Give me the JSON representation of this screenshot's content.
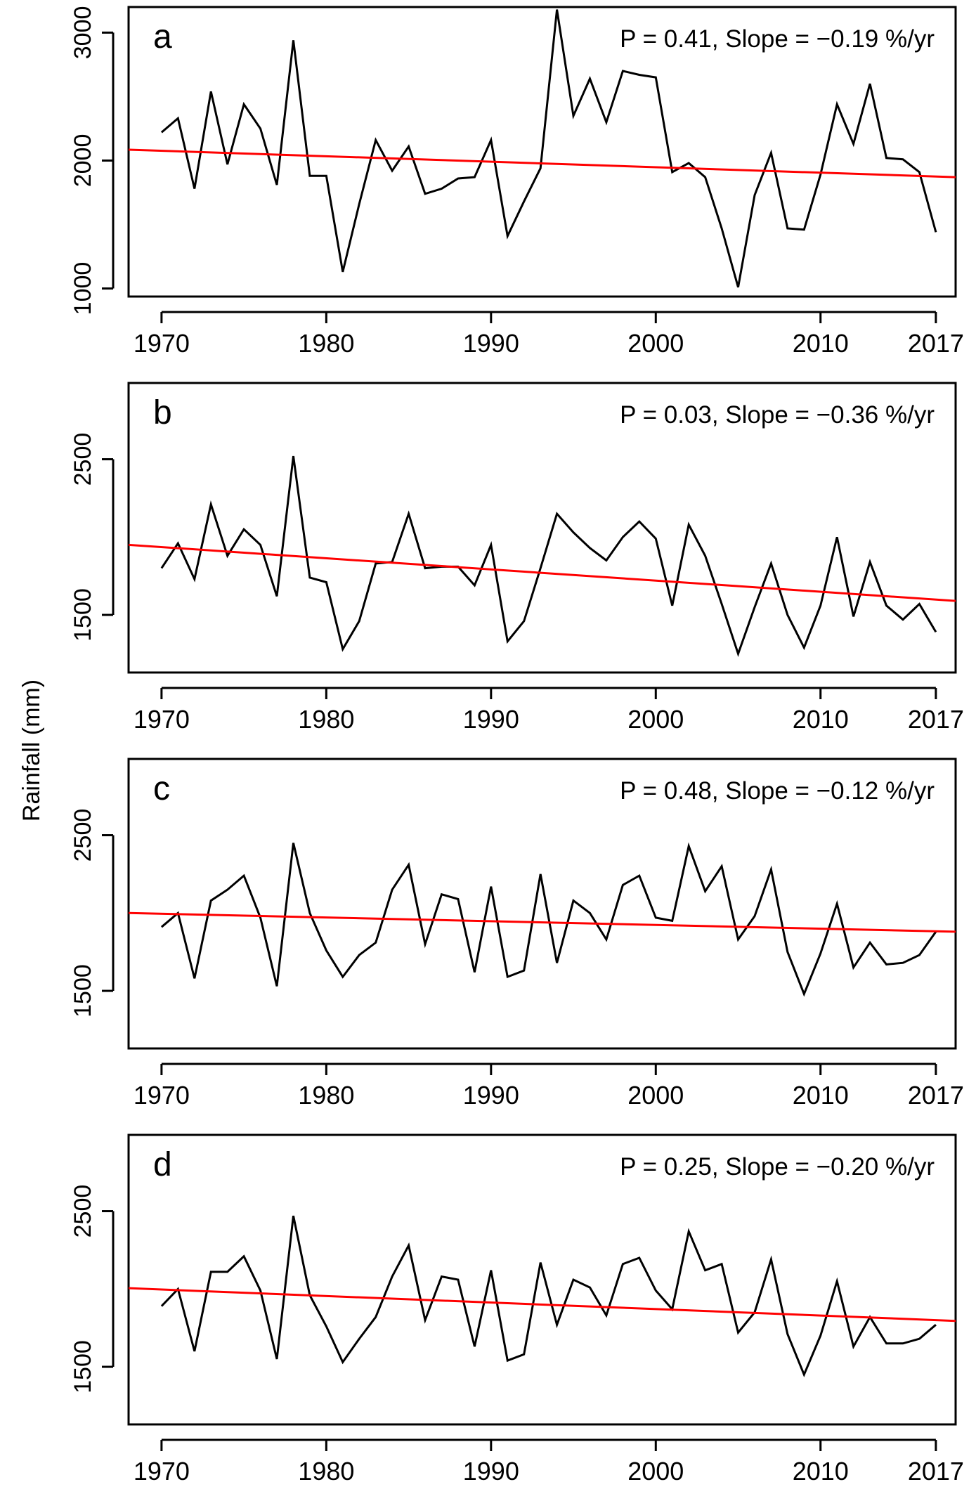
{
  "figure": {
    "ylabel": "Rainfall (mm)"
  },
  "chart_data": [
    {
      "type": "line",
      "panel": "a",
      "annotation": "P = 0.41, Slope = −0.19 %/yr",
      "ylabel": "Rainfall (mm)",
      "xlim": [
        1968,
        2018.2
      ],
      "ylim": [
        937,
        3200
      ],
      "x_ticks": [
        1970,
        1980,
        1990,
        2000,
        2010,
        2017
      ],
      "y_ticks": [
        1000,
        2000,
        3000
      ],
      "grid": false,
      "series": [
        {
          "color": "#000000",
          "x": [
            1970,
            1971,
            1972,
            1973,
            1974,
            1975,
            1976,
            1977,
            1978,
            1979,
            1980,
            1981,
            1982,
            1983,
            1984,
            1985,
            1986,
            1987,
            1988,
            1989,
            1990,
            1991,
            1992,
            1993,
            1994,
            1995,
            1996,
            1997,
            1998,
            1999,
            2000,
            2001,
            2002,
            2003,
            2004,
            2005,
            2006,
            2007,
            2008,
            2009,
            2010,
            2011,
            2012,
            2013,
            2014,
            2015,
            2016,
            2017
          ],
          "values": [
            2220,
            2330,
            1780,
            2540,
            1970,
            2440,
            2250,
            1810,
            2940,
            1880,
            1880,
            1130,
            1660,
            2160,
            1920,
            2110,
            1740,
            1780,
            1860,
            1870,
            2160,
            1410,
            1680,
            1940,
            3180,
            2350,
            2640,
            2300,
            2700,
            2670,
            2650,
            1910,
            1980,
            1870,
            1470,
            1010,
            1730,
            2060,
            1470,
            1460,
            1890,
            2440,
            2130,
            2600,
            2020,
            2010,
            1910,
            1440
          ]
        },
        {
          "color": "#ff0000",
          "x": [
            1968,
            2018.2
          ],
          "values": [
            2085,
            1870
          ]
        }
      ]
    },
    {
      "type": "line",
      "panel": "b",
      "annotation": "P = 0.03, Slope = −0.36 %/yr",
      "ylabel": "Rainfall (mm)",
      "xlim": [
        1968,
        2018.2
      ],
      "ylim": [
        1130,
        2990
      ],
      "x_ticks": [
        1970,
        1980,
        1990,
        2000,
        2010,
        2017
      ],
      "y_ticks": [
        1500,
        2500
      ],
      "grid": false,
      "series": [
        {
          "color": "#000000",
          "x": [
            1970,
            1971,
            1972,
            1973,
            1974,
            1975,
            1976,
            1977,
            1978,
            1979,
            1980,
            1981,
            1982,
            1983,
            1984,
            1985,
            1986,
            1987,
            1988,
            1989,
            1990,
            1991,
            1992,
            1993,
            1994,
            1995,
            1996,
            1997,
            1998,
            1999,
            2000,
            2001,
            2002,
            2003,
            2004,
            2005,
            2006,
            2007,
            2008,
            2009,
            2010,
            2011,
            2012,
            2013,
            2014,
            2015,
            2016,
            2017
          ],
          "values": [
            1800,
            1960,
            1730,
            2210,
            1880,
            2050,
            1950,
            1620,
            2520,
            1740,
            1710,
            1280,
            1460,
            1830,
            1840,
            2150,
            1800,
            1810,
            1810,
            1690,
            1950,
            1330,
            1460,
            1800,
            2150,
            2030,
            1930,
            1850,
            2000,
            2100,
            1990,
            1560,
            2080,
            1880,
            1570,
            1250,
            1550,
            1830,
            1500,
            1290,
            1560,
            2000,
            1490,
            1840,
            1560,
            1470,
            1570,
            1390
          ]
        },
        {
          "color": "#ff0000",
          "x": [
            1968,
            2018.2
          ],
          "values": [
            1950,
            1590
          ]
        }
      ]
    },
    {
      "type": "line",
      "panel": "c",
      "annotation": "P = 0.48, Slope = −0.12 %/yr",
      "ylabel": "Rainfall (mm)",
      "xlim": [
        1968,
        2018.2
      ],
      "ylim": [
        1130,
        2990
      ],
      "x_ticks": [
        1970,
        1980,
        1990,
        2000,
        2010,
        2017
      ],
      "y_ticks": [
        1500,
        2500
      ],
      "grid": false,
      "series": [
        {
          "color": "#000000",
          "x": [
            1970,
            1971,
            1972,
            1973,
            1974,
            1975,
            1976,
            1977,
            1978,
            1979,
            1980,
            1981,
            1982,
            1983,
            1984,
            1985,
            1986,
            1987,
            1988,
            1989,
            1990,
            1991,
            1992,
            1993,
            1994,
            1995,
            1996,
            1997,
            1998,
            1999,
            2000,
            2001,
            2002,
            2003,
            2004,
            2005,
            2006,
            2007,
            2008,
            2009,
            2010,
            2011,
            2012,
            2013,
            2014,
            2015,
            2016,
            2017
          ],
          "values": [
            1910,
            2000,
            1580,
            2080,
            2150,
            2240,
            1970,
            1530,
            2450,
            2000,
            1760,
            1590,
            1730,
            1810,
            2150,
            2310,
            1800,
            2120,
            2090,
            1620,
            2170,
            1590,
            1630,
            2250,
            1680,
            2080,
            2000,
            1830,
            2180,
            2240,
            1970,
            1950,
            2430,
            2140,
            2300,
            1830,
            1980,
            2280,
            1750,
            1480,
            1740,
            2060,
            1650,
            1810,
            1670,
            1680,
            1730,
            1880
          ]
        },
        {
          "color": "#ff0000",
          "x": [
            1968,
            2018.2
          ],
          "values": [
            2000,
            1880
          ]
        }
      ]
    },
    {
      "type": "line",
      "panel": "d",
      "annotation": "P = 0.25, Slope = −0.20 %/yr",
      "ylabel": "Rainfall (mm)",
      "xlim": [
        1968,
        2018.2
      ],
      "ylim": [
        1130,
        2990
      ],
      "x_ticks": [
        1970,
        1980,
        1990,
        2000,
        2010,
        2017
      ],
      "y_ticks": [
        1500,
        2500
      ],
      "grid": false,
      "series": [
        {
          "color": "#000000",
          "x": [
            1970,
            1971,
            1972,
            1973,
            1974,
            1975,
            1976,
            1977,
            1978,
            1979,
            1980,
            1981,
            1982,
            1983,
            1984,
            1985,
            1986,
            1987,
            1988,
            1989,
            1990,
            1991,
            1992,
            1993,
            1994,
            1995,
            1996,
            1997,
            1998,
            1999,
            2000,
            2001,
            2002,
            2003,
            2004,
            2005,
            2006,
            2007,
            2008,
            2009,
            2010,
            2011,
            2012,
            2013,
            2014,
            2015,
            2016,
            2017
          ],
          "values": [
            1890,
            2000,
            1600,
            2110,
            2110,
            2210,
            1990,
            1550,
            2470,
            1960,
            1760,
            1530,
            1680,
            1820,
            2080,
            2280,
            1800,
            2080,
            2060,
            1630,
            2120,
            1540,
            1580,
            2170,
            1770,
            2060,
            2010,
            1830,
            2160,
            2200,
            1990,
            1870,
            2370,
            2120,
            2160,
            1720,
            1850,
            2190,
            1710,
            1450,
            1700,
            2050,
            1630,
            1820,
            1650,
            1650,
            1680,
            1770
          ]
        },
        {
          "color": "#ff0000",
          "x": [
            1968,
            2018.2
          ],
          "values": [
            2005,
            1795
          ]
        }
      ]
    }
  ]
}
